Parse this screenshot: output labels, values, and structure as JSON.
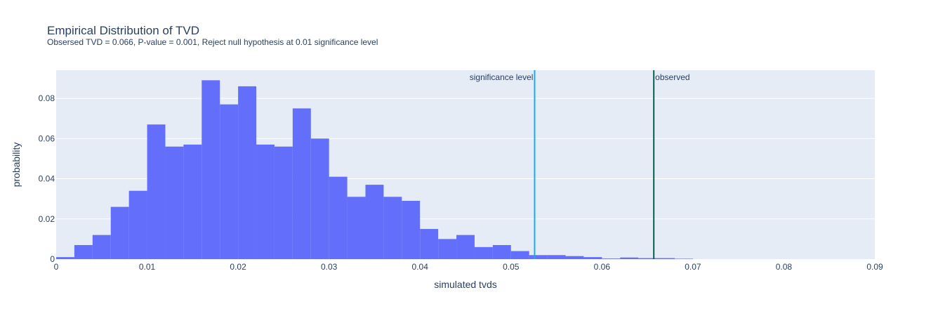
{
  "chart_data": {
    "type": "bar",
    "title": "Empirical Distribution of TVD",
    "subtitle": "Obsersed TVD = 0.066, P-value = 0.001, Reject null hypothesis at 0.01 significance level",
    "xlabel": "simulated tvds",
    "ylabel": "probability",
    "xlim": [
      0,
      0.09
    ],
    "ylim": [
      0,
      0.094
    ],
    "x_ticks": [
      "0",
      "0.01",
      "0.02",
      "0.03",
      "0.04",
      "0.05",
      "0.06",
      "0.07",
      "0.08",
      "0.09"
    ],
    "y_ticks": [
      "0",
      "0.02",
      "0.04",
      "0.06",
      "0.08"
    ],
    "grid": true,
    "bin_width": 0.002,
    "bin_starts": [
      0,
      0.002,
      0.004,
      0.006,
      0.008,
      0.01,
      0.012,
      0.014,
      0.016,
      0.018,
      0.02,
      0.022,
      0.024,
      0.026,
      0.028,
      0.03,
      0.032,
      0.034,
      0.036,
      0.038,
      0.04,
      0.042,
      0.044,
      0.046,
      0.048,
      0.05,
      0.052,
      0.054,
      0.056,
      0.058,
      0.06,
      0.062,
      0.064,
      0.066,
      0.068
    ],
    "values": [
      0.001,
      0.007,
      0.012,
      0.026,
      0.034,
      0.067,
      0.056,
      0.057,
      0.089,
      0.077,
      0.086,
      0.057,
      0.056,
      0.075,
      0.06,
      0.041,
      0.031,
      0.037,
      0.031,
      0.029,
      0.015,
      0.01,
      0.012,
      0.006,
      0.007,
      0.004,
      0.002,
      0.002,
      0.0015,
      0.001,
      0.0003,
      0.0008,
      0.0005,
      0.0005,
      0.0002
    ],
    "bar_color": "#636efa",
    "vlines": [
      {
        "label": "significance level",
        "x": 0.0526,
        "color": "#1ca9f2",
        "label_side": "left"
      },
      {
        "label": "observed",
        "x": 0.0657,
        "color": "#0b5e4e",
        "label_side": "right"
      }
    ],
    "plot_bgcolor": "#e5ecf6"
  }
}
